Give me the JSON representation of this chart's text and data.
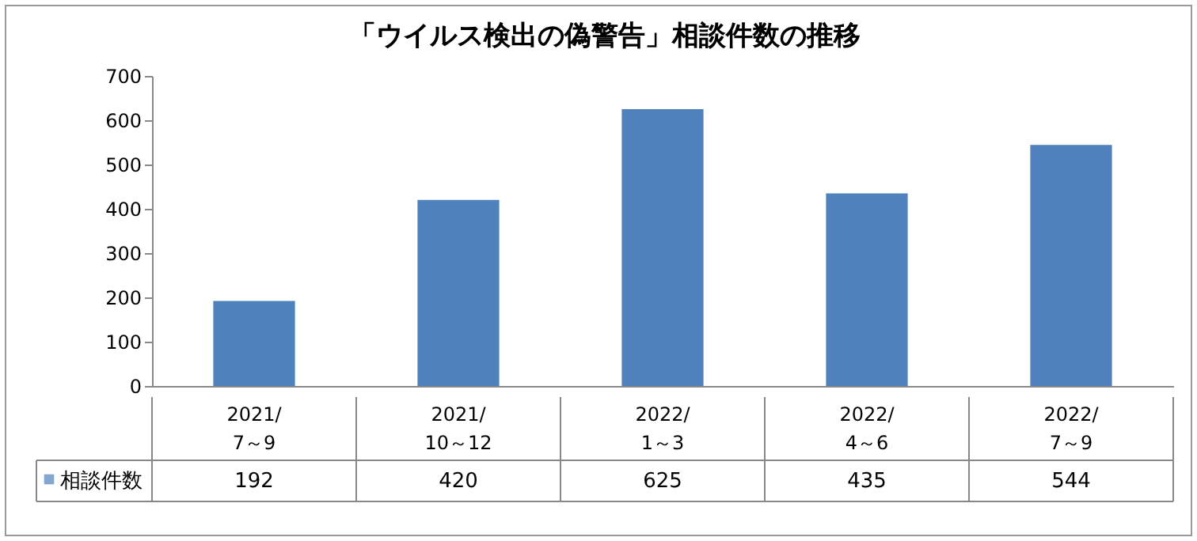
{
  "chart_data": {
    "type": "bar",
    "title": "「ウイルス検出の偽警告」相談件数の推移",
    "categories": [
      "2021/7～9",
      "2021/10～12",
      "2022/1～3",
      "2022/4～6",
      "2022/7～9"
    ],
    "series": [
      {
        "name": "相談件数",
        "color": "#4f81bd",
        "values": [
          192,
          420,
          625,
          435,
          544
        ]
      }
    ],
    "ylim": [
      0,
      700
    ],
    "yticks": [
      0,
      100,
      200,
      300,
      400,
      500,
      600,
      700
    ],
    "data_labels": true,
    "legend": "bottom left"
  }
}
